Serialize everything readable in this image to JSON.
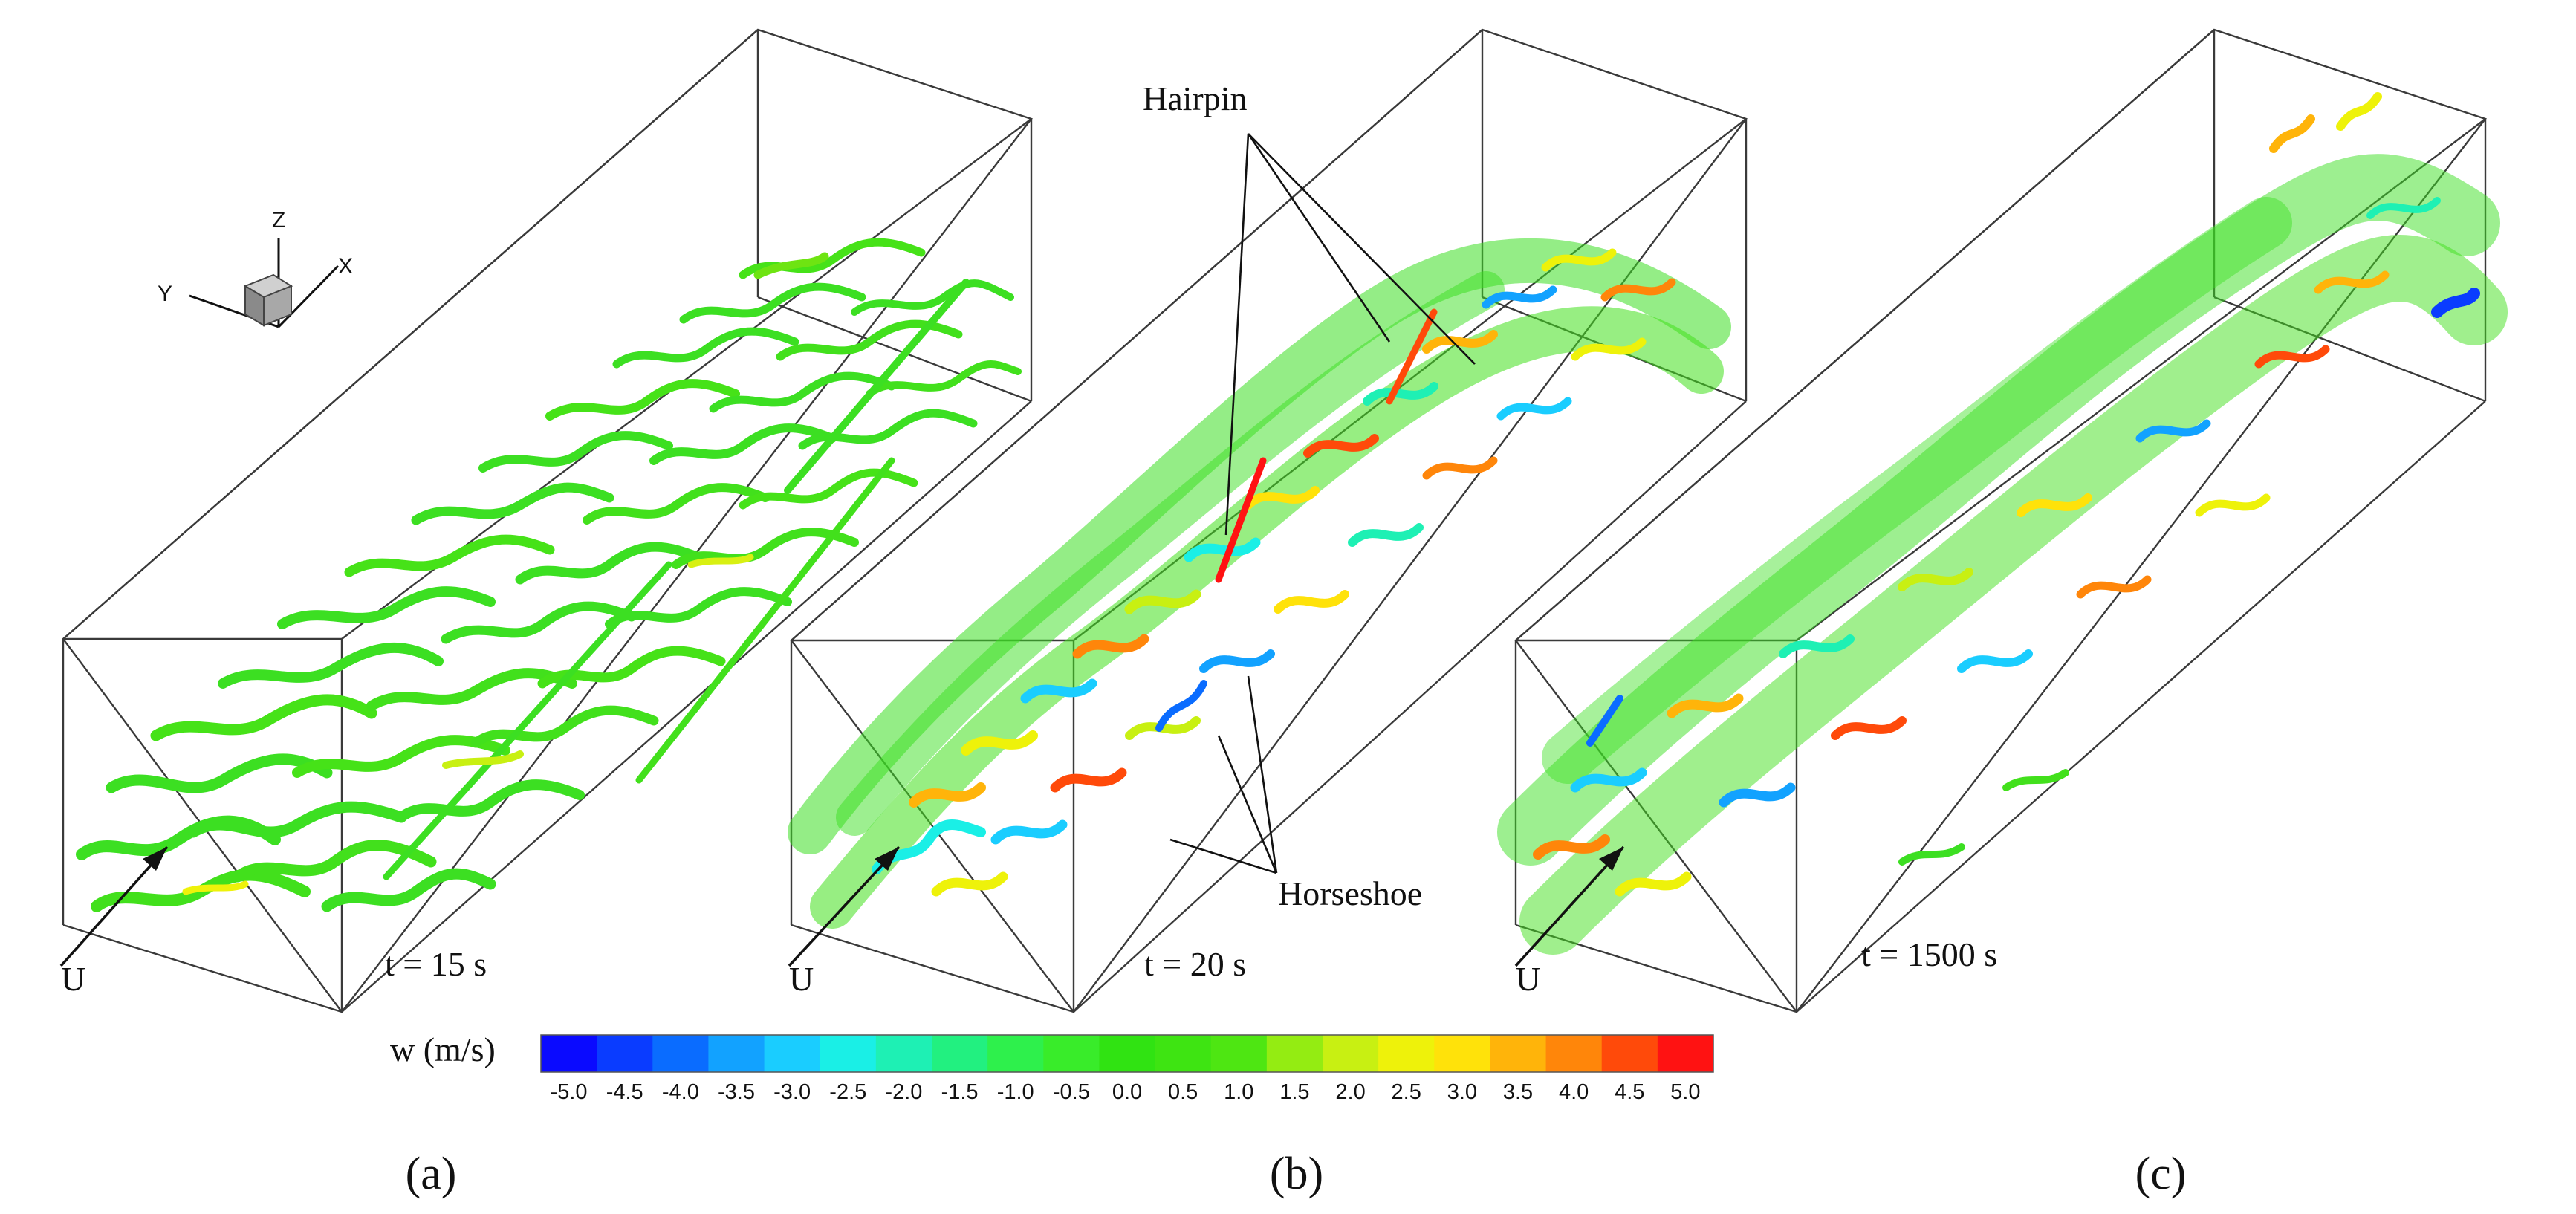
{
  "axis_triad": {
    "z": "Z",
    "x": "X",
    "y": "Y"
  },
  "panels": [
    {
      "id": "a",
      "panel_label": "(a)",
      "inflow_label": "U",
      "time_label": "t = 15 s"
    },
    {
      "id": "b",
      "panel_label": "(b)",
      "inflow_label": "U",
      "time_label": "t = 20 s"
    },
    {
      "id": "c",
      "panel_label": "(c)",
      "inflow_label": "U",
      "time_label": "t = 1500 s"
    }
  ],
  "annotations": {
    "hairpin": "Hairpin",
    "horseshoe": "Horseshoe"
  },
  "colorbar": {
    "title": "w (m/s)",
    "ticks": [
      "-5.0",
      "-4.5",
      "-4.0",
      "-3.5",
      "-3.0",
      "-2.5",
      "-2.0",
      "-1.5",
      "-1.0",
      "-0.5",
      "0.0",
      "0.5",
      "1.0",
      "1.5",
      "2.0",
      "2.5",
      "3.0",
      "3.5",
      "4.0",
      "4.5",
      "5.0"
    ],
    "colors": [
      "#0a0aff",
      "#0a3cff",
      "#0a6cff",
      "#12a2ff",
      "#1acdff",
      "#1aefe6",
      "#1ef0b4",
      "#22f080",
      "#2ef04c",
      "#39ec2a",
      "#30e312",
      "#3ee412",
      "#4ee612",
      "#94ec12",
      "#c8f012",
      "#eef20a",
      "#ffe20a",
      "#ffb40a",
      "#ff860a",
      "#ff4a0a",
      "#ff1212"
    ]
  },
  "colors": {
    "frame_line": "#3a3a3a",
    "background": "#ffffff",
    "text": "#111111"
  }
}
